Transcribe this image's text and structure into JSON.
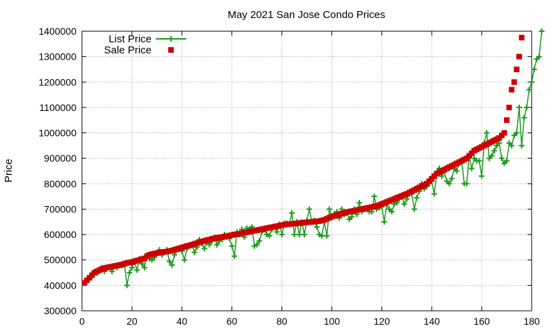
{
  "chart_data": {
    "type": "line",
    "title": "May 2021 San Jose Condo Prices",
    "xlabel": "",
    "ylabel": "Price",
    "xlim": [
      0,
      180
    ],
    "ylim": [
      300000,
      1400000
    ],
    "xticks": [
      "0",
      "20",
      "40",
      "60",
      "80",
      "100",
      "120",
      "140",
      "160",
      "180"
    ],
    "yticks": [
      "300000",
      "400000",
      "500000",
      "600000",
      "700000",
      "800000",
      "900000",
      "1000000",
      "1100000",
      "1200000",
      "1300000",
      "1400000"
    ],
    "grid": true,
    "legend_position": "top-left",
    "colors": {
      "list_price": "#1a9a1a",
      "sale_price": "#cc0000"
    },
    "series": [
      {
        "name": "List Price",
        "style": "line-with-plus-markers",
        "values": [
          410000,
          420000,
          430000,
          445000,
          455000,
          448000,
          462000,
          470000,
          455000,
          468000,
          472000,
          455000,
          475000,
          470000,
          480000,
          478000,
          482000,
          400000,
          450000,
          470000,
          492000,
          460000,
          505000,
          485000,
          470000,
          520000,
          505000,
          500000,
          510000,
          525000,
          540000,
          520000,
          530000,
          540000,
          495000,
          480000,
          520000,
          540000,
          545000,
          535000,
          500000,
          545000,
          555000,
          560000,
          530000,
          550000,
          580000,
          565000,
          545000,
          570000,
          560000,
          575000,
          590000,
          560000,
          575000,
          580000,
          600000,
          590000,
          585000,
          555000,
          515000,
          610000,
          600000,
          620000,
          590000,
          625000,
          620000,
          630000,
          555000,
          560000,
          575000,
          610000,
          620000,
          600000,
          595000,
          620000,
          630000,
          610000,
          640000,
          600000,
          645000,
          645000,
          640000,
          685000,
          600000,
          650000,
          600000,
          650000,
          600000,
          655000,
          700000,
          650000,
          655000,
          630000,
          600000,
          595000,
          650000,
          595000,
          700000,
          670000,
          680000,
          690000,
          665000,
          700000,
          680000,
          685000,
          660000,
          670000,
          700000,
          680000,
          725000,
          690000,
          700000,
          700000,
          690000,
          690000,
          750000,
          700000,
          705000,
          710000,
          650000,
          720000,
          700000,
          690000,
          720000,
          725000,
          740000,
          750000,
          720000,
          740000,
          760000,
          760000,
          700000,
          745000,
          770000,
          800000,
          780000,
          790000,
          800000,
          810000,
          760000,
          840000,
          860000,
          830000,
          850000,
          810000,
          800000,
          820000,
          860000,
          850000,
          880000,
          890000,
          800000,
          800000,
          910000,
          860000,
          900000,
          890000,
          890000,
          830000,
          960000,
          1000000,
          900000,
          910000,
          930000,
          950000,
          960000,
          900000,
          880000,
          890000,
          960000,
          950000,
          990000,
          1000000,
          1100000,
          950000,
          1060000,
          1100000,
          1170000,
          1200000,
          1250000,
          1290000,
          1300000,
          1400000
        ]
      },
      {
        "name": "Sale Price",
        "style": "square-markers",
        "values": [
          410000,
          420000,
          430000,
          440000,
          450000,
          455000,
          460000,
          465000,
          468000,
          470000,
          472000,
          474000,
          476000,
          478000,
          480000,
          482000,
          485000,
          488000,
          490000,
          492000,
          495000,
          498000,
          500000,
          503000,
          506000,
          515000,
          520000,
          523000,
          525000,
          527000,
          528000,
          530000,
          532000,
          533000,
          535000,
          537000,
          540000,
          543000,
          546000,
          549000,
          552000,
          555000,
          557000,
          560000,
          563000,
          566000,
          569000,
          572000,
          575000,
          578000,
          580000,
          583000,
          585000,
          587000,
          589000,
          590000,
          592000,
          594000,
          596000,
          598000,
          600000,
          601000,
          603000,
          605000,
          607000,
          609000,
          611000,
          613000,
          615000,
          617000,
          619000,
          621000,
          623000,
          625000,
          627000,
          629000,
          631000,
          633000,
          635000,
          637000,
          639000,
          640000,
          641000,
          642000,
          643000,
          644000,
          645000,
          646000,
          647000,
          648000,
          649000,
          650000,
          651000,
          652000,
          653000,
          655000,
          658000,
          662000,
          666000,
          670000,
          673000,
          676000,
          679000,
          682000,
          685000,
          688000,
          690000,
          692000,
          694000,
          696000,
          698000,
          700000,
          702000,
          704000,
          706000,
          708000,
          710000,
          713000,
          716000,
          720000,
          724000,
          728000,
          732000,
          736000,
          740000,
          744000,
          748000,
          752000,
          756000,
          760000,
          765000,
          770000,
          775000,
          780000,
          785000,
          790000,
          795000,
          800000,
          810000,
          820000,
          830000,
          840000,
          845000,
          850000,
          855000,
          860000,
          865000,
          870000,
          875000,
          880000,
          885000,
          890000,
          895000,
          900000,
          910000,
          920000,
          930000,
          935000,
          940000,
          945000,
          950000,
          955000,
          960000,
          965000,
          970000,
          975000,
          980000,
          990000,
          1000000,
          1050000,
          1100000,
          1170000,
          1200000,
          1250000,
          1300000,
          1375000
        ]
      }
    ]
  }
}
